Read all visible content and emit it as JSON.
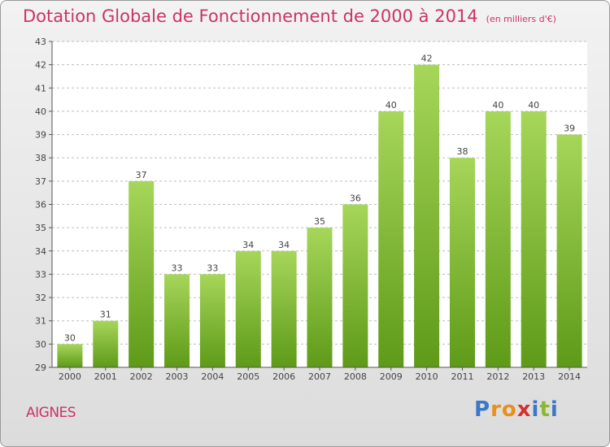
{
  "title": "Dotation Globale de Fonctionnement de 2000 à 2014",
  "unit": "(en milliers d'€)",
  "commune": "AIGNES",
  "brand": {
    "text": "Proxiti",
    "letter_colors": [
      "#3a78c8",
      "#e8901a",
      "#e8901a",
      "#d63030",
      "#3a78c8",
      "#8ab830",
      "#3a78c8"
    ]
  },
  "colors": {
    "title": "#cc3366",
    "bar_light": "#a6d65a",
    "bar_dark": "#5e9a18",
    "axis": "#555555",
    "grid": "#bdbdbd"
  },
  "chart_data": {
    "type": "bar",
    "categories": [
      "2000",
      "2001",
      "2002",
      "2003",
      "2004",
      "2005",
      "2006",
      "2007",
      "2008",
      "2009",
      "2010",
      "2011",
      "2012",
      "2013",
      "2014"
    ],
    "values": [
      30,
      31,
      37,
      33,
      33,
      34,
      34,
      35,
      36,
      40,
      42,
      38,
      40,
      40,
      39
    ],
    "ylim": [
      29,
      43
    ],
    "yticks": [
      29,
      30,
      31,
      32,
      33,
      34,
      35,
      36,
      37,
      38,
      39,
      40,
      41,
      42,
      43
    ],
    "grid": true,
    "data_labels": true
  }
}
